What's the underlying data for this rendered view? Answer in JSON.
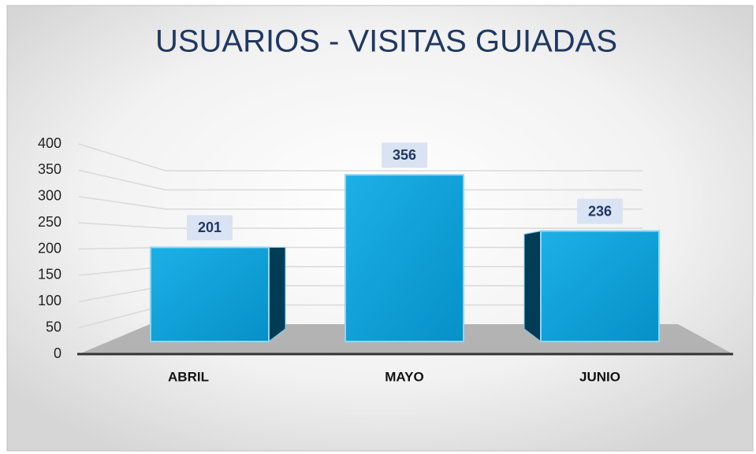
{
  "chart_data": {
    "type": "bar3d",
    "title": "USUARIOS - VISITAS GUIADAS",
    "categories": [
      "ABRIL",
      "MAYO",
      "JUNIO"
    ],
    "values": [
      201,
      356,
      236
    ],
    "color": "#12a2da",
    "ylim": [
      0,
      400
    ],
    "yticks": [
      0,
      50,
      100,
      150,
      200,
      250,
      300,
      350,
      400
    ],
    "grid": true
  }
}
